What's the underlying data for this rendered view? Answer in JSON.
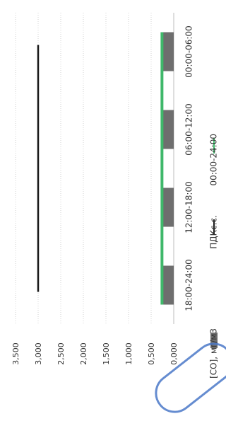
{
  "chart_data": {
    "type": "bar",
    "orientation": "rotated",
    "categories": [
      "00:00-06:00",
      "06:00-12:00",
      "12:00-18:00",
      "18:00-24:00"
    ],
    "ylim": [
      0,
      3.5
    ],
    "yticks": [
      "0,000",
      "0,500",
      "1,000",
      "1,500",
      "2,000",
      "2,500",
      "3,000",
      "3,500"
    ],
    "grid": true,
    "legend_position": "bottom",
    "series": [
      {
        "name": "[CO], мг/м3",
        "kind": "bar",
        "color": "#6e6e6e",
        "values": [
          0.26,
          0.26,
          0.26,
          0.26
        ]
      },
      {
        "name": "ПДКс.с.",
        "kind": "line",
        "color": "#1a1a1a",
        "values": [
          3.0,
          3.0,
          3.0,
          3.0
        ]
      },
      {
        "name": "00:00-24:00",
        "kind": "line",
        "color": "#3fb86a",
        "values": [
          0.26,
          0.26,
          0.26,
          0.26
        ]
      }
    ]
  },
  "stamp": {
    "text": ""
  }
}
